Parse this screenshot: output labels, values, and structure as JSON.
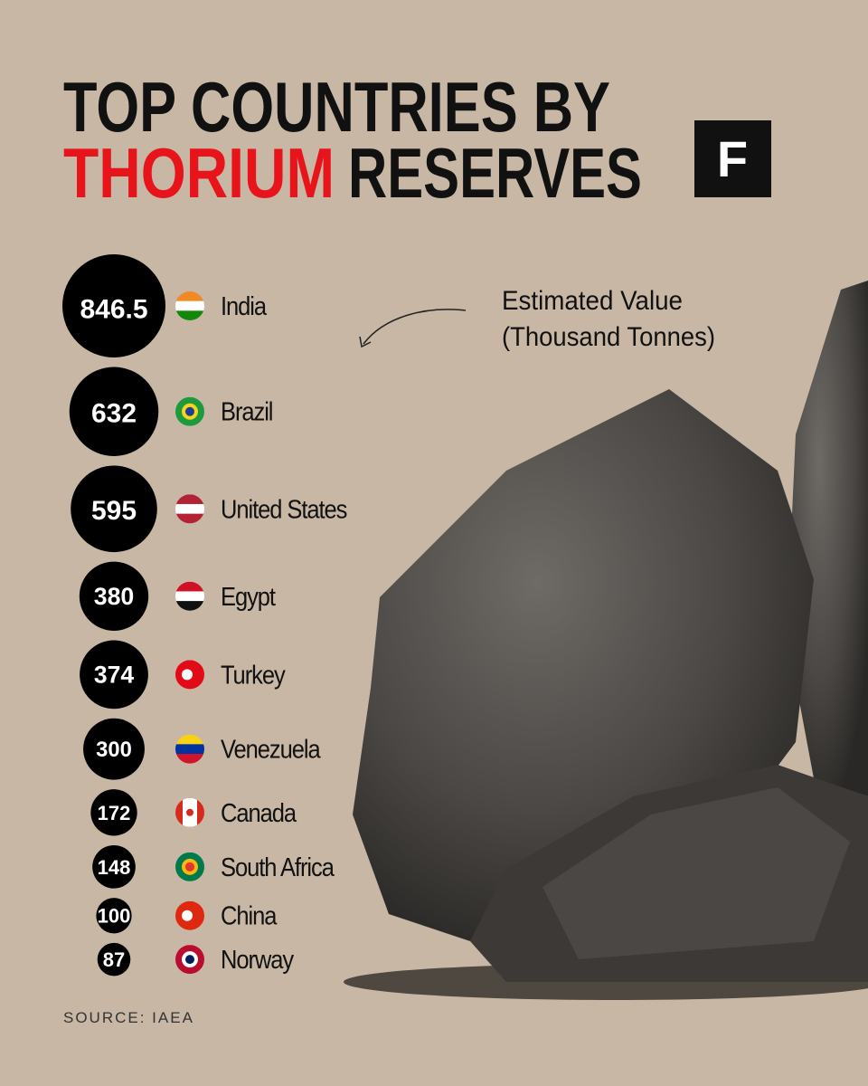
{
  "chart_data": {
    "type": "bubble",
    "title_line1": "TOP COUNTRIES BY",
    "title_highlight": "THORIUM",
    "title_rest": "RESERVES",
    "highlight_color": "#e8141c",
    "logo": "F",
    "annotation": [
      "Estimated Value",
      "(Thousand Tonnes)"
    ],
    "categories": [
      "India",
      "Brazil",
      "United States",
      "Egypt",
      "Turkey",
      "Venezuela",
      "Canada",
      "South Africa",
      "China",
      "Norway"
    ],
    "values": [
      846.5,
      632,
      595,
      380,
      374,
      300,
      172,
      148,
      100,
      87
    ],
    "color": "#000000",
    "source": "SOURCE: IAEA"
  }
}
